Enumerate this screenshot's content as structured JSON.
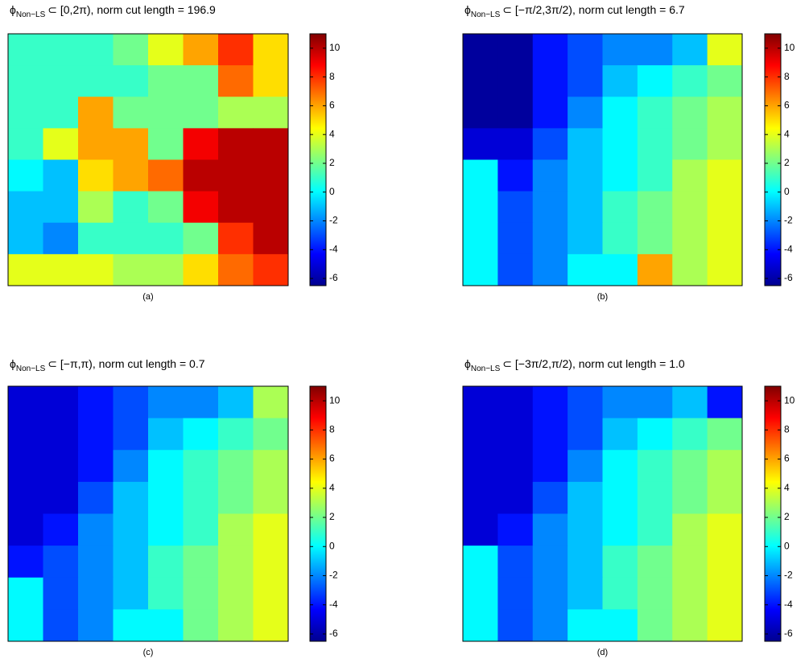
{
  "chart_data": [
    {
      "type": "heatmap",
      "title_symbol": "ϕ",
      "title_subscript": "Non−LS",
      "title": "⊂ [0,2π), norm cut length = 196.9",
      "caption": "(a)",
      "colormap": "jet",
      "zlim": [
        -6.5,
        11
      ],
      "zticks": [
        -6,
        -4,
        -2,
        0,
        2,
        4,
        6,
        8,
        10
      ],
      "values": [
        [
          1,
          1,
          1,
          2,
          4,
          6,
          8,
          5
        ],
        [
          1,
          1,
          1,
          1,
          2,
          2,
          7,
          5
        ],
        [
          1,
          1,
          6,
          2,
          2,
          2,
          3,
          3
        ],
        [
          1,
          4,
          6,
          6,
          2,
          9,
          10,
          10
        ],
        [
          0,
          -1,
          5,
          6,
          7,
          10,
          10,
          10
        ],
        [
          -1,
          -1,
          3,
          1,
          2,
          9,
          10,
          10
        ],
        [
          -1,
          -2,
          1,
          1,
          1,
          2,
          8,
          10
        ],
        [
          4,
          4,
          4,
          3,
          3,
          5,
          7,
          8
        ]
      ]
    },
    {
      "type": "heatmap",
      "title_symbol": "ϕ",
      "title_subscript": "Non−LS",
      "title": "⊂ [−π/2,3π/2), norm cut length = 6.7",
      "caption": "(b)",
      "colormap": "jet",
      "zlim": [
        -6.5,
        11
      ],
      "zticks": [
        -6,
        -4,
        -2,
        0,
        2,
        4,
        6,
        8,
        10
      ],
      "values": [
        [
          -6,
          -6,
          -4,
          -3,
          -2,
          -2,
          -1,
          4
        ],
        [
          -6,
          -6,
          -4,
          -3,
          -1,
          0,
          1,
          2
        ],
        [
          -6,
          -6,
          -4,
          -2,
          0,
          1,
          2,
          3
        ],
        [
          -5,
          -5,
          -3,
          -1,
          0,
          1,
          2,
          3
        ],
        [
          0,
          -4,
          -2,
          -1,
          0,
          1,
          3,
          4
        ],
        [
          0,
          -3,
          -2,
          -1,
          1,
          2,
          3,
          4
        ],
        [
          0,
          -3,
          -2,
          -1,
          1,
          2,
          3,
          4
        ],
        [
          0,
          -3,
          -2,
          0,
          0,
          6,
          3,
          4
        ]
      ]
    },
    {
      "type": "heatmap",
      "title_symbol": "ϕ",
      "title_subscript": "Non−LS",
      "title": "⊂ [−π,π), norm cut length = 0.7",
      "caption": "(c)",
      "colormap": "jet",
      "zlim": [
        -6.5,
        11
      ],
      "zticks": [
        -6,
        -4,
        -2,
        0,
        2,
        4,
        6,
        8,
        10
      ],
      "values": [
        [
          -5,
          -5,
          -4,
          -3,
          -2,
          -2,
          -1,
          3
        ],
        [
          -5,
          -5,
          -4,
          -3,
          -1,
          0,
          1,
          2
        ],
        [
          -5,
          -5,
          -4,
          -2,
          0,
          1,
          2,
          3
        ],
        [
          -5,
          -5,
          -3,
          -1,
          0,
          1,
          2,
          3
        ],
        [
          -5,
          -4,
          -2,
          -1,
          0,
          1,
          3,
          4
        ],
        [
          -4,
          -3,
          -2,
          -1,
          1,
          2,
          3,
          4
        ],
        [
          0,
          -3,
          -2,
          -1,
          1,
          2,
          3,
          4
        ],
        [
          0,
          -3,
          -2,
          0,
          0,
          2,
          3,
          4
        ]
      ]
    },
    {
      "type": "heatmap",
      "title_symbol": "ϕ",
      "title_subscript": "Non−LS",
      "title": "⊂ [−3π/2,π/2), norm cut length = 1.0",
      "caption": "(d)",
      "colormap": "jet",
      "zlim": [
        -6.5,
        11
      ],
      "zticks": [
        -6,
        -4,
        -2,
        0,
        2,
        4,
        6,
        8,
        10
      ],
      "values": [
        [
          -5,
          -5,
          -4,
          -3,
          -2,
          -2,
          -1,
          -4
        ],
        [
          -5,
          -5,
          -4,
          -3,
          -1,
          0,
          1,
          2
        ],
        [
          -5,
          -5,
          -4,
          -2,
          0,
          1,
          2,
          3
        ],
        [
          -5,
          -5,
          -3,
          -1,
          0,
          1,
          2,
          3
        ],
        [
          -5,
          -4,
          -2,
          -1,
          0,
          1,
          3,
          4
        ],
        [
          0,
          -3,
          -2,
          -1,
          1,
          2,
          3,
          4
        ],
        [
          0,
          -3,
          -2,
          -1,
          1,
          2,
          3,
          4
        ],
        [
          0,
          -3,
          -2,
          0,
          0,
          2,
          3,
          4
        ]
      ]
    }
  ]
}
